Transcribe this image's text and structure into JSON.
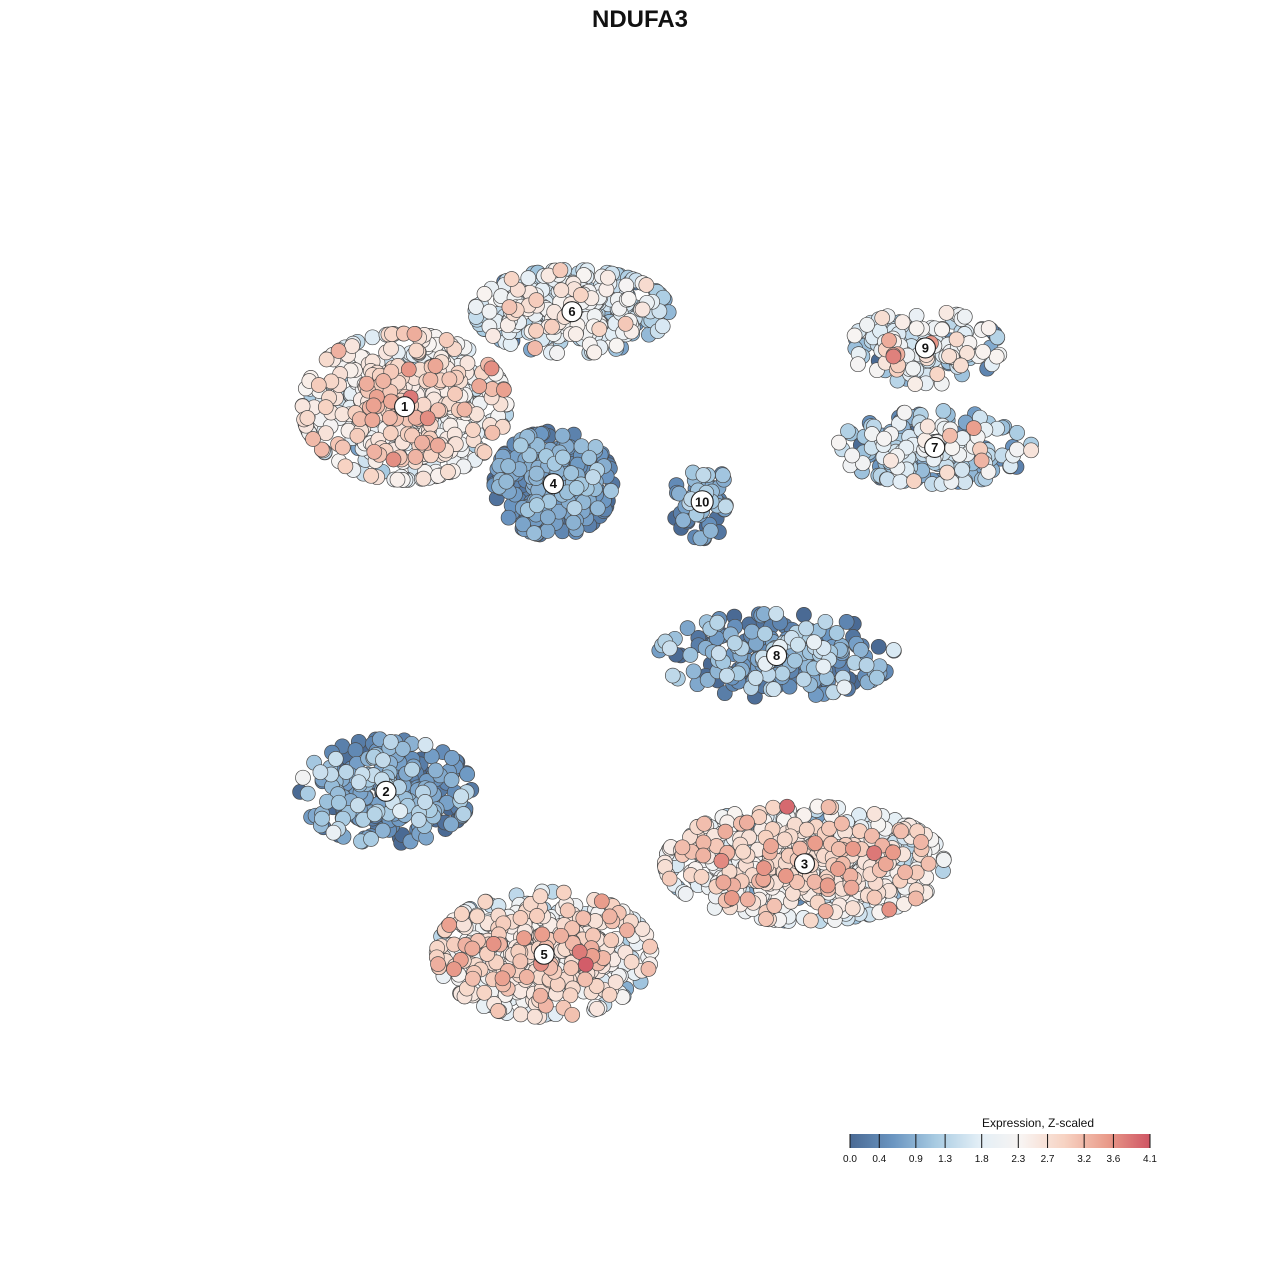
{
  "chart_data": {
    "type": "scatter",
    "title": "NDUFA3",
    "xlabel": "",
    "ylabel": "",
    "grid": false,
    "legend": {
      "title": "Expression, Z-scaled",
      "placement": "bottom-right",
      "ticks": [
        "0.0",
        "0.4",
        "0.9",
        "1.3",
        "1.8",
        "2.3",
        "2.7",
        "3.2",
        "3.6",
        "4.1"
      ],
      "range": [
        0.0,
        4.1
      ],
      "colors": [
        "#4a6a94",
        "#6a95c1",
        "#a8cbe2",
        "#e2eef6",
        "#f8f4f2",
        "#f7d3c3",
        "#e99b8a",
        "#cf5564"
      ]
    },
    "xlim": [
      0,
      100
    ],
    "ylim": [
      0,
      100
    ],
    "clusters": [
      {
        "label": "1",
        "x": 22,
        "y": 75.5,
        "sx": 9.5,
        "sy": 7,
        "n": 620,
        "mean": 2.2,
        "sd": 0.55
      },
      {
        "label": "6",
        "x": 40,
        "y": 86,
        "sx": 9,
        "sy": 4,
        "n": 420,
        "mean": 1.6,
        "sd": 0.6
      },
      {
        "label": "4",
        "x": 38,
        "y": 67,
        "sx": 5.5,
        "sy": 5,
        "n": 380,
        "mean": 0.5,
        "sd": 0.35
      },
      {
        "label": "10",
        "x": 54,
        "y": 65,
        "sx": 2.8,
        "sy": 3.5,
        "n": 70,
        "mean": 0.6,
        "sd": 0.4
      },
      {
        "label": "9",
        "x": 78,
        "y": 82,
        "sx": 7,
        "sy": 3.5,
        "n": 160,
        "mean": 1.8,
        "sd": 0.6
      },
      {
        "label": "7",
        "x": 79,
        "y": 71,
        "sx": 9,
        "sy": 3.5,
        "n": 210,
        "mean": 1.3,
        "sd": 0.7
      },
      {
        "label": "8",
        "x": 62,
        "y": 48,
        "sx": 11,
        "sy": 4,
        "n": 230,
        "mean": 0.7,
        "sd": 0.6
      },
      {
        "label": "2",
        "x": 20,
        "y": 33,
        "sx": 8,
        "sy": 5,
        "n": 290,
        "mean": 0.6,
        "sd": 0.5
      },
      {
        "label": "3",
        "x": 65,
        "y": 25,
        "sx": 13,
        "sy": 5.5,
        "n": 720,
        "mean": 2.1,
        "sd": 0.6
      },
      {
        "label": "5",
        "x": 37,
        "y": 15,
        "sx": 10,
        "sy": 6,
        "n": 580,
        "mean": 2.3,
        "sd": 0.55
      }
    ]
  }
}
